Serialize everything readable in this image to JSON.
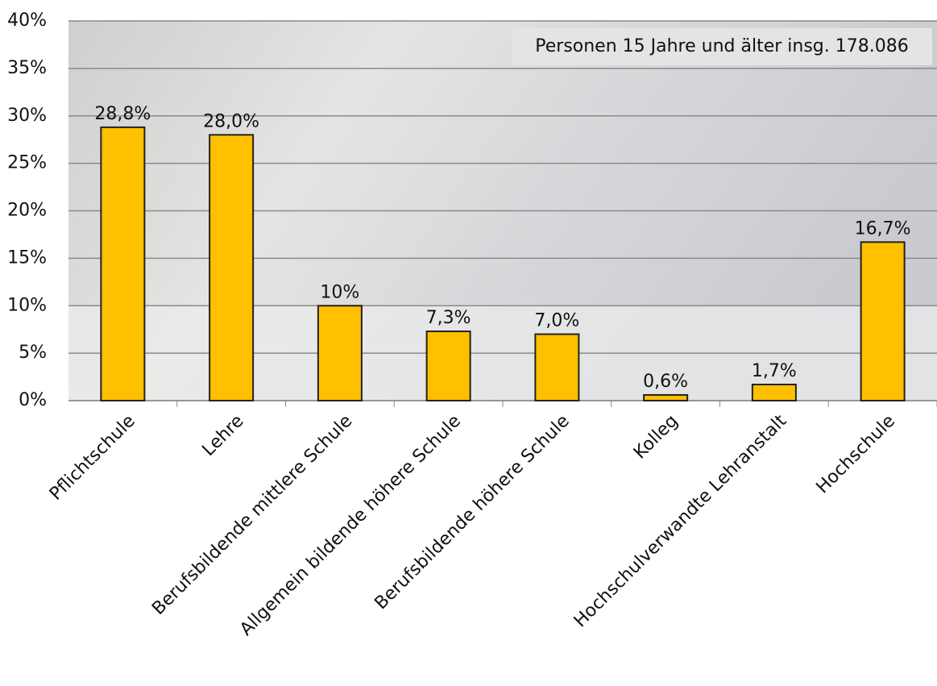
{
  "chart_data": {
    "type": "bar",
    "annotation": "Personen 15 Jahre und älter insg. 178.086",
    "categories": [
      "Pflichtschule",
      "Lehre",
      "Berufsbildende mittlere Schule",
      "Allgemein bildende höhere Schule",
      "Berufsbildende höhere Schule",
      "Kolleg",
      "Hochschulverwandte Lehranstalt",
      "Hochschule"
    ],
    "values": [
      28.8,
      28.0,
      10,
      7.3,
      7.0,
      0.6,
      1.7,
      16.7
    ],
    "value_labels": [
      "28,8%",
      "28,0%",
      "10%",
      "7,3%",
      "7,0%",
      "0,6%",
      "1,7%",
      "16,7%"
    ],
    "color": "#ffc000",
    "ylim": [
      0,
      40
    ],
    "yticks": [
      {
        "value": 0,
        "label": "0%"
      },
      {
        "value": 5,
        "label": "5%"
      },
      {
        "value": 10,
        "label": "10%"
      },
      {
        "value": 15,
        "label": "15%"
      },
      {
        "value": 20,
        "label": "20%"
      },
      {
        "value": 25,
        "label": "25%"
      },
      {
        "value": 30,
        "label": "30%"
      },
      {
        "value": 35,
        "label": "35%"
      },
      {
        "value": 40,
        "label": "40%"
      }
    ],
    "grid": true
  }
}
